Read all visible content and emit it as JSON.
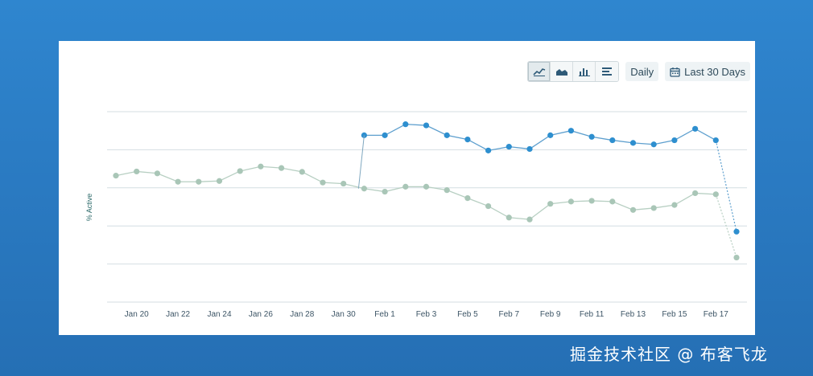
{
  "toolbar": {
    "chart_type_icons": [
      "line-chart-icon",
      "area-chart-icon",
      "bar-chart-icon",
      "table-icon"
    ],
    "interval_label": "Daily",
    "range_icon": "calendar-icon",
    "range_label": "Last 30 Days"
  },
  "watermark": "掘金技术社区 @ 布客飞龙",
  "chart_data": {
    "type": "line",
    "ylabel": "% Active",
    "xlabel": "",
    "grid": true,
    "legend": "none",
    "x_ticks": [
      "Jan 20",
      "Jan 22",
      "Jan 24",
      "Jan 26",
      "Jan 28",
      "Jan 30",
      "Feb 1",
      "Feb 3",
      "Feb 5",
      "Feb 7",
      "Feb 9",
      "Feb 11",
      "Feb 13",
      "Feb 15",
      "Feb 17"
    ],
    "ylim": [
      0,
      5
    ],
    "colors": {
      "series_a": "#2e8fcf",
      "series_b": "#a9c6b7",
      "grid": "#d4dee2"
    },
    "series": [
      {
        "x_start": "2025-01-19",
        "values": [
          3.32,
          3.43,
          3.38,
          3.16,
          3.16,
          3.18,
          3.44,
          3.56,
          3.52,
          3.42,
          3.14,
          3.11,
          2.98,
          2.9,
          3.03,
          3.03,
          2.94,
          2.73,
          2.52,
          2.22,
          2.17,
          2.58,
          2.64,
          2.66,
          2.64,
          2.42,
          2.47,
          2.55,
          2.86,
          2.83,
          1.17
        ]
      },
      {
        "x_start": "2025-01-31",
        "values": [
          4.38,
          4.38,
          4.67,
          4.64,
          4.38,
          4.27,
          3.98,
          4.08,
          4.02,
          4.38,
          4.5,
          4.34,
          4.25,
          4.18,
          4.14,
          4.25,
          4.55,
          4.25,
          1.85
        ]
      }
    ]
  }
}
